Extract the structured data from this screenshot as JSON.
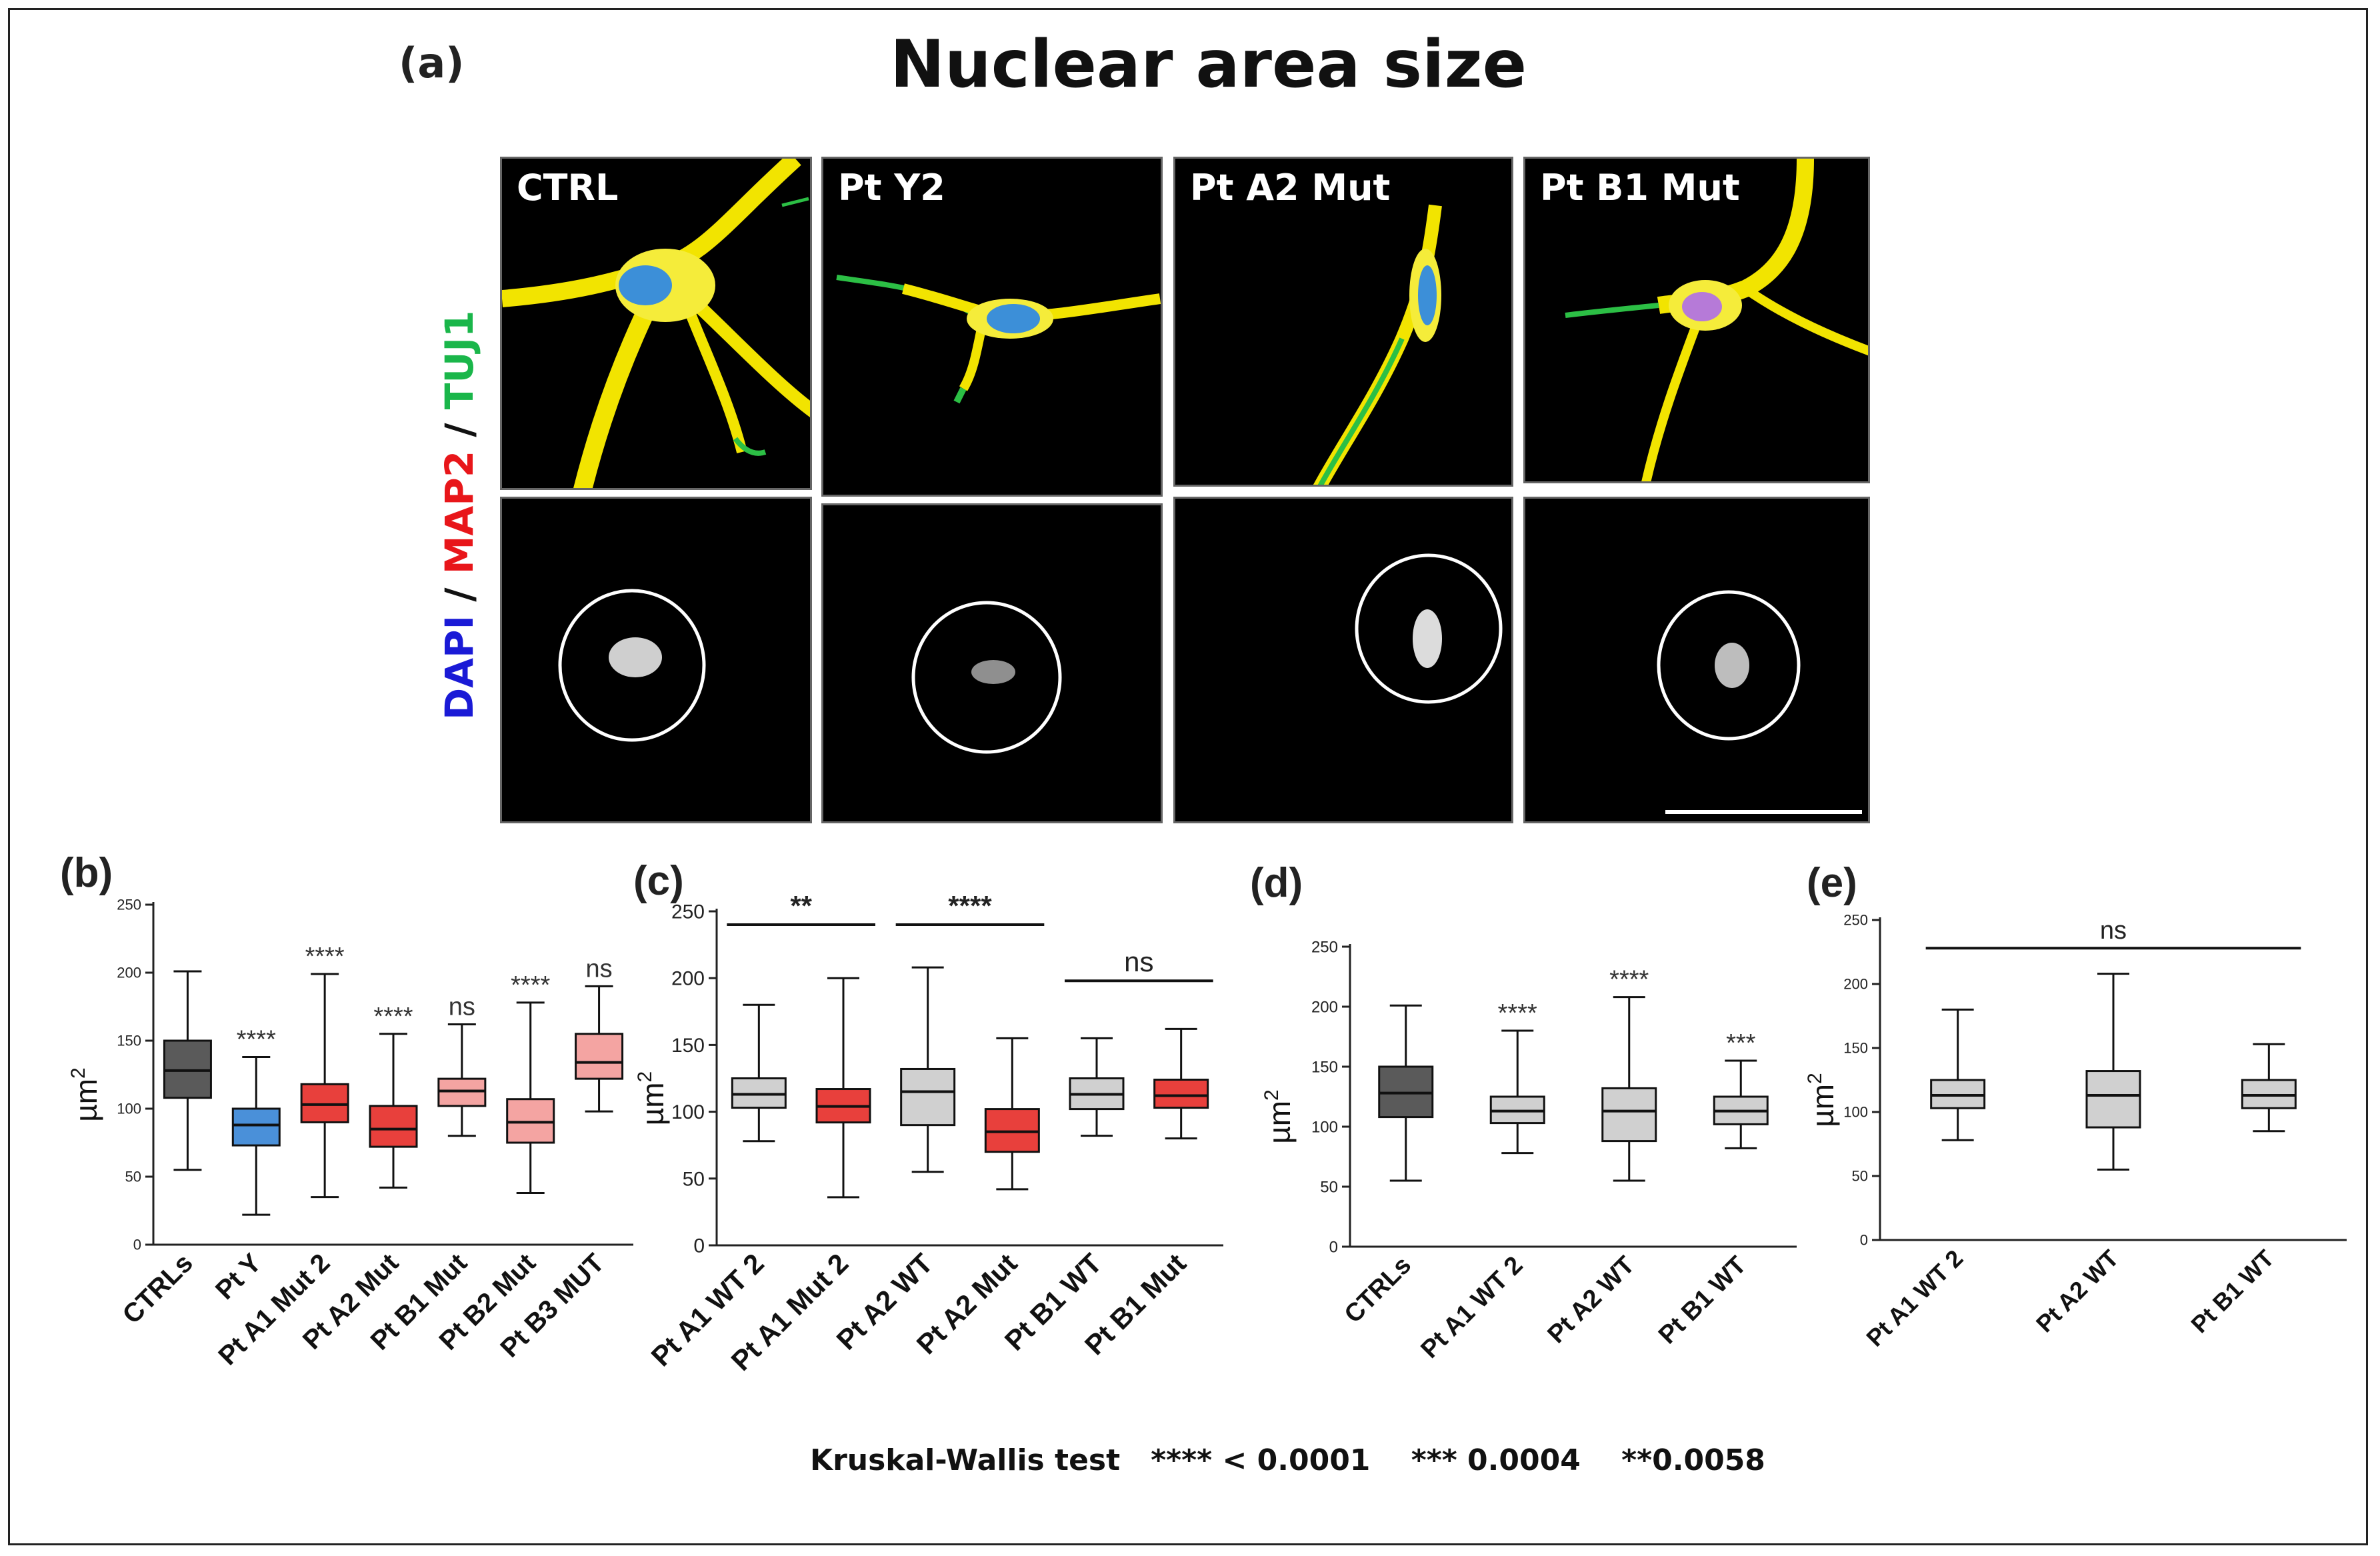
{
  "figure": {
    "title": "Nuclear area size",
    "stain_label": {
      "dapi": "DAPI",
      "sep1": " / ",
      "map2": "MAP2",
      "sep2": " / ",
      "tuj1": "TUJ1"
    },
    "footnote": "Kruskal-Wallis test   **** < 0.0001    *** 0.0004    **0.0058"
  },
  "panel_a": {
    "letter": "(a)",
    "images": [
      {
        "label": "CTRL"
      },
      {
        "label": "Pt Y2"
      },
      {
        "label": "Pt A2 Mut"
      },
      {
        "label": "Pt B1 Mut"
      }
    ]
  },
  "chart_data": [
    {
      "panel": "(b)",
      "type": "box",
      "ylabel": "µm",
      "ylabel_sup": "2",
      "ylim": [
        0,
        250
      ],
      "yticks": [
        0,
        50,
        100,
        150,
        200,
        250
      ],
      "categories": [
        "CTRLs",
        "Pt Y",
        "Pt A1 Mut 2",
        "Pt A2 Mut",
        "Pt B1 Mut",
        "Pt B2 Mut",
        "Pt B3 MUT"
      ],
      "boxes": [
        {
          "min": 55,
          "q1": 108,
          "median": 128,
          "q3": 150,
          "max": 201,
          "color": "#5a5a5a",
          "sig": ""
        },
        {
          "min": 22,
          "q1": 73,
          "median": 88,
          "q3": 100,
          "max": 138,
          "color": "#4a90d9",
          "sig": "****"
        },
        {
          "min": 35,
          "q1": 90,
          "median": 103,
          "q3": 118,
          "max": 199,
          "color": "#e8403c",
          "sig": "****"
        },
        {
          "min": 42,
          "q1": 72,
          "median": 85,
          "q3": 102,
          "max": 155,
          "color": "#e8403c",
          "sig": "****"
        },
        {
          "min": 80,
          "q1": 102,
          "median": 113,
          "q3": 122,
          "max": 162,
          "color": "#f4a4a2",
          "sig": "ns"
        },
        {
          "min": 38,
          "q1": 75,
          "median": 90,
          "q3": 107,
          "max": 178,
          "color": "#f4a4a2",
          "sig": "****"
        },
        {
          "min": 98,
          "q1": 122,
          "median": 134,
          "q3": 155,
          "max": 190,
          "color": "#f4a4a2",
          "sig": "ns"
        }
      ]
    },
    {
      "panel": "(c)",
      "type": "box",
      "ylabel": "µm",
      "ylabel_sup": "2",
      "ylim": [
        0,
        250
      ],
      "yticks": [
        0,
        50,
        100,
        150,
        200,
        250
      ],
      "categories": [
        "Pt A1 WT 2",
        "Pt A1 Mut 2",
        "Pt A2 WT",
        "Pt A2 Mut",
        "Pt B1 WT",
        "Pt B1 Mut"
      ],
      "boxes": [
        {
          "min": 78,
          "q1": 103,
          "median": 113,
          "q3": 125,
          "max": 180,
          "color": "#d0d0d0"
        },
        {
          "min": 36,
          "q1": 92,
          "median": 104,
          "q3": 117,
          "max": 200,
          "color": "#e8403c"
        },
        {
          "min": 55,
          "q1": 90,
          "median": 115,
          "q3": 132,
          "max": 208,
          "color": "#d0d0d0"
        },
        {
          "min": 42,
          "q1": 70,
          "median": 85,
          "q3": 102,
          "max": 155,
          "color": "#e8403c"
        },
        {
          "min": 82,
          "q1": 102,
          "median": 113,
          "q3": 125,
          "max": 155,
          "color": "#d0d0d0"
        },
        {
          "min": 80,
          "q1": 103,
          "median": 112,
          "q3": 124,
          "max": 162,
          "color": "#e8403c"
        }
      ],
      "brackets": [
        {
          "from": 0,
          "to": 1,
          "y": 240,
          "sig": "**"
        },
        {
          "from": 2,
          "to": 3,
          "y": 240,
          "sig": "****"
        },
        {
          "from": 4,
          "to": 5,
          "y": 198,
          "sig": "ns"
        }
      ]
    },
    {
      "panel": "(d)",
      "type": "box",
      "ylabel": "µm",
      "ylabel_sup": "2",
      "ylim": [
        0,
        250
      ],
      "yticks": [
        0,
        50,
        100,
        150,
        200,
        250
      ],
      "categories": [
        "CTRLs",
        "Pt A1 WT 2",
        "Pt A2 WT",
        "Pt B1 WT"
      ],
      "boxes": [
        {
          "min": 55,
          "q1": 108,
          "median": 128,
          "q3": 150,
          "max": 201,
          "color": "#5a5a5a",
          "sig": ""
        },
        {
          "min": 78,
          "q1": 103,
          "median": 113,
          "q3": 125,
          "max": 180,
          "color": "#d0d0d0",
          "sig": "****"
        },
        {
          "min": 55,
          "q1": 88,
          "median": 113,
          "q3": 132,
          "max": 208,
          "color": "#d0d0d0",
          "sig": "****"
        },
        {
          "min": 82,
          "q1": 102,
          "median": 113,
          "q3": 125,
          "max": 155,
          "color": "#d0d0d0",
          "sig": "***"
        }
      ]
    },
    {
      "panel": "(e)",
      "type": "box",
      "ylabel": "µm",
      "ylabel_sup": "2",
      "ylim": [
        0,
        250
      ],
      "yticks": [
        0,
        50,
        100,
        150,
        200,
        250
      ],
      "categories": [
        "Pt A1 WT 2",
        "Pt A2 WT",
        "Pt B1 WT"
      ],
      "boxes": [
        {
          "min": 78,
          "q1": 103,
          "median": 113,
          "q3": 125,
          "max": 180,
          "color": "#d0d0d0"
        },
        {
          "min": 55,
          "q1": 88,
          "median": 113,
          "q3": 132,
          "max": 208,
          "color": "#d0d0d0"
        },
        {
          "min": 85,
          "q1": 103,
          "median": 113,
          "q3": 125,
          "max": 153,
          "color": "#d0d0d0"
        }
      ],
      "brackets": [
        {
          "from": 0,
          "to": 2,
          "y": 228,
          "sig": "ns",
          "flat": true
        }
      ]
    }
  ]
}
